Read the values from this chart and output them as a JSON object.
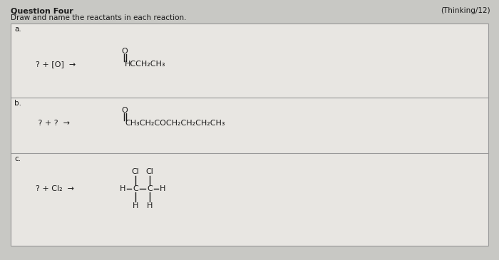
{
  "title_bold": "Question Four",
  "subtitle": "Draw and name the reactants in each reaction.",
  "thinking": "(Thinking/12)",
  "bg_outer": "#c8c8c4",
  "bg_inner": "#e8e6e2",
  "border_color": "#999999",
  "text_color": "#1a1a1a",
  "section_labels": [
    "a.",
    "b.",
    "c."
  ],
  "title_fontsize": 8.0,
  "subtitle_fontsize": 7.5,
  "body_fontsize": 8.0,
  "label_fontsize": 7.5
}
